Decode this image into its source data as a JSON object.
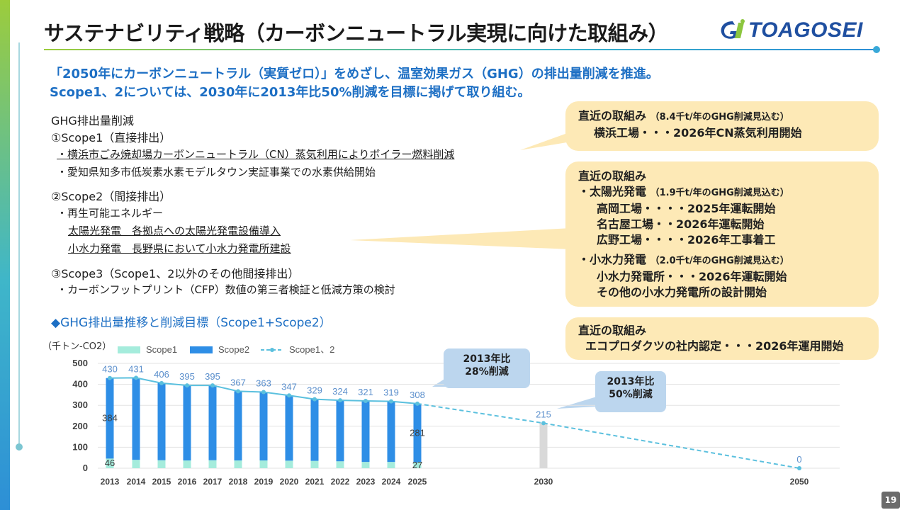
{
  "header": {
    "title": "サステナビリティ戦略（カーボンニュートラル実現に向けた取組み）",
    "logo_text": "TOAGOSEI"
  },
  "lead": {
    "line1": "「2050年にカーボンニュートラル（実質ゼロ）」をめざし、温室効果ガス（GHG）の排出量削減を推進。",
    "line2": "Scope1、2については、2030年に2013年比50%削減を目標に掲げて取り組む。"
  },
  "body": {
    "heading": "GHG排出量削減",
    "scope1_title": "①Scope1（直接排出）",
    "scope1_item1": "・横浜市ごみ焼却場カーボンニュートラル（CN）蒸気利用によりボイラー燃料削減",
    "scope1_item2": "・愛知県知多市低炭素水素モデルタウン実証事業での水素供給開始",
    "scope2_title": "②Scope2（間接排出）",
    "scope2_item1": "・再生可能エネルギー",
    "scope2_item2": "太陽光発電　各拠点への太陽光発電設備導入",
    "scope2_item3": "小水力発電　長野県において小水力発電所建設",
    "scope3_title": "③Scope3（Scope1、2以外のその他間接排出）",
    "scope3_item1": "・カーボンフットプリント（CFP）数値の第三者検証と低減方策の検討"
  },
  "callouts": {
    "c1_head": "直近の取組み",
    "c1_note": "（8.4千t/年のGHG削減見込む）",
    "c1_line": "横浜工場・・・2026年CN蒸気利用開始",
    "c2_head": "直近の取組み",
    "c2_solar": "・太陽光発電",
    "c2_solar_note": "（1.9千t/年のGHG削減見込む）",
    "c2_s1": "高岡工場・・・・2025年運転開始",
    "c2_s2": "名古屋工場・・2026年運転開始",
    "c2_s3": "広野工場・・・・2026年工事着工",
    "c2_hydro": "・小水力発電",
    "c2_hydro_note": "（2.0千t/年のGHG削減見込む）",
    "c2_h1": "小水力発電所・・・2026年運転開始",
    "c2_h2": "その他の小水力発電所の設計開始",
    "c3_head": "直近の取組み",
    "c3_line": "エコプロダクツの社内認定・・・2026年運用開始"
  },
  "chart_heading": "◆GHG排出量推移と削減目標（Scope1+Scope2）",
  "chart_unit": "（千トン-CO2）",
  "bubbles": {
    "b2025_line1": "2013年比",
    "b2025_line2": "28%削減",
    "b2030_line1": "2013年比",
    "b2030_line2": "50%削減"
  },
  "page_number": "19",
  "chart_data": {
    "type": "bar",
    "categories": [
      "2013",
      "2014",
      "2015",
      "2016",
      "2017",
      "2018",
      "2019",
      "2020",
      "2021",
      "2022",
      "2023",
      "2024",
      "2025",
      "2030",
      "2050"
    ],
    "series": [
      {
        "name": "Scope1",
        "type": "stacked-bar",
        "color": "#a5ecdc",
        "values": [
          46,
          40,
          38,
          37,
          38,
          37,
          37,
          36,
          35,
          33,
          30,
          30,
          27,
          null,
          null
        ]
      },
      {
        "name": "Scope2",
        "type": "stacked-bar",
        "color": "#2e8ee6",
        "values": [
          384,
          391,
          368,
          358,
          357,
          330,
          326,
          311,
          294,
          291,
          291,
          289,
          281,
          null,
          null
        ]
      },
      {
        "name": "Scope1、2",
        "type": "line",
        "color": "#5bc0de",
        "values": [
          430,
          431,
          406,
          395,
          395,
          367,
          363,
          347,
          329,
          324,
          321,
          319,
          308,
          215,
          0
        ]
      }
    ],
    "target_bar": {
      "category": "2030",
      "value": 215,
      "color": "#d9d9d9"
    },
    "projection": {
      "from": "2025",
      "to": "2050",
      "style": "dashed"
    },
    "labeled_components": {
      "2013": {
        "Scope1": 46,
        "Scope2": 384
      },
      "2025": {
        "Scope1": 27,
        "Scope2": 281
      }
    },
    "yticks": [
      0,
      100,
      200,
      300,
      400,
      500
    ],
    "ylim": [
      0,
      500
    ],
    "ylabel": "（千トン-CO2）",
    "legend_position": "top",
    "grid": true
  }
}
